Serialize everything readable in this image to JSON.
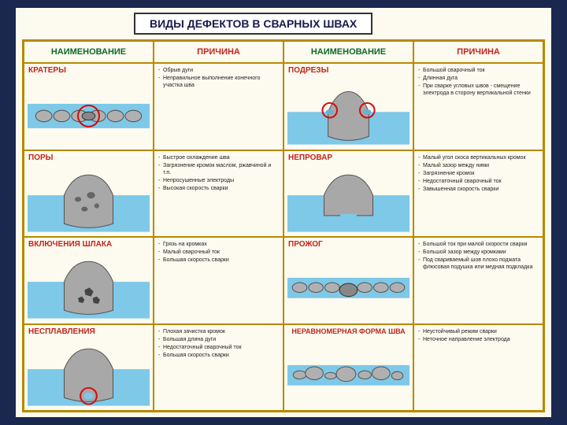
{
  "title": "ВИДЫ ДЕФЕКТОВ В СВАРНЫХ ШВАХ",
  "headers": {
    "col1": "НАИМЕНОВАНИЕ",
    "col2": "ПРИЧИНА",
    "col3": "НАИМЕНОВАНИЕ",
    "col4": "ПРИЧИНА"
  },
  "defects": [
    {
      "name": "КРАТЕРЫ",
      "causes": [
        "Обрыв дуги",
        "Неправильное выполнение конечного участка шва"
      ]
    },
    {
      "name": "ПОДРЕЗЫ",
      "causes": [
        "Большой сварочный ток",
        "Длинная дуга",
        "При сварке угловых швов - смещение электрода в сторону вертикальной стенки"
      ]
    },
    {
      "name": "ПОРЫ",
      "causes": [
        "Быстрое охлаждение шва",
        "Загрязнение кромок маслом, ржавчиной и т.п.",
        "Непросушенные электроды",
        "Высокая скорость сварки"
      ]
    },
    {
      "name": "НЕПРОВАР",
      "causes": [
        "Малый угол скоса вертикальных кромок",
        "Малый зазор между ними",
        "Загрязнение кромок",
        "Недостаточный сварочный ток",
        "Завышенная скорость сварки"
      ]
    },
    {
      "name": "ВКЛЮЧЕНИЯ ШЛАКА",
      "causes": [
        "Грязь на кромках",
        "Малый сварочный ток",
        "Большая скорость сварки"
      ]
    },
    {
      "name": "ПРОЖОГ",
      "causes": [
        "Большой ток при малой скорости сварки",
        "Большой зазор между кромками",
        "Под свариваемый шов плохо поджата флюсовая подушка или медная подкладка"
      ]
    },
    {
      "name": "НЕСПЛАВЛЕНИЯ",
      "causes": [
        "Плохая зачистка кромок",
        "Большая длина дуги",
        "Недостаточный сварочный ток",
        "Большая скорость сварки"
      ]
    },
    {
      "name": "НЕРАВНОМЕРНАЯ ФОРМА ШВА",
      "causes": [
        "Неустойчивый режим сварки",
        "Неточное направление электрода"
      ]
    }
  ],
  "colors": {
    "bg": "#1a2850",
    "page": "#fdfaf0",
    "border": "#b88800",
    "green": "#0a6b2c",
    "red": "#c0251b",
    "water": "#7ec8e8",
    "metal": "#9a9a9a",
    "circle": "#d01010"
  }
}
